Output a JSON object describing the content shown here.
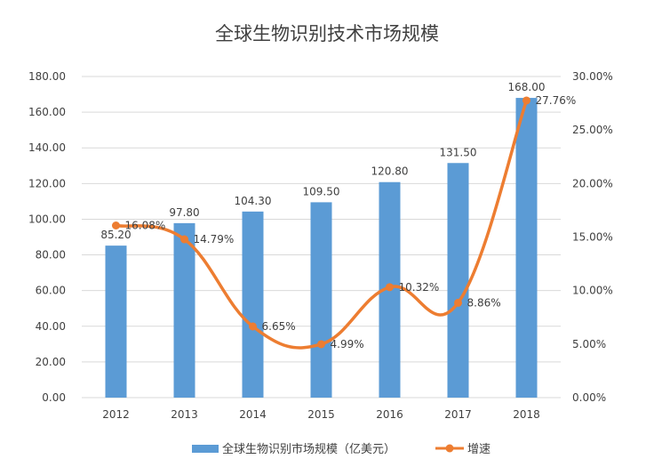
{
  "chart_data": {
    "type": "bar",
    "title": "全球生物识别技术市场规模",
    "categories": [
      "2012",
      "2013",
      "2014",
      "2015",
      "2016",
      "2017",
      "2018"
    ],
    "series": [
      {
        "name": "全球生物识别市场规模（亿美元）",
        "type": "bar",
        "axis": "left",
        "values": [
          85.2,
          97.8,
          104.3,
          109.5,
          120.8,
          131.5,
          168.0
        ],
        "labels": [
          "85.20",
          "97.80",
          "104.30",
          "109.50",
          "120.80",
          "131.50",
          "168.00"
        ],
        "color": "#5B9BD5"
      },
      {
        "name": "增速",
        "type": "line",
        "smooth": true,
        "axis": "right",
        "values": [
          16.08,
          14.79,
          6.65,
          4.99,
          10.32,
          8.86,
          27.76
        ],
        "labels": [
          "16.08%",
          "14.79%",
          "6.65%",
          "4.99%",
          "10.32%",
          "8.86%",
          "27.76%"
        ],
        "color": "#ED7D31"
      }
    ],
    "y_left": {
      "min": 0,
      "max": 180,
      "step": 20,
      "ticks": [
        "0.00",
        "20.00",
        "40.00",
        "60.00",
        "80.00",
        "100.00",
        "120.00",
        "140.00",
        "160.00",
        "180.00"
      ]
    },
    "y_right": {
      "min": 0,
      "max": 30,
      "step": 5,
      "ticks": [
        "0.00%",
        "5.00%",
        "10.00%",
        "15.00%",
        "20.00%",
        "25.00%",
        "30.00%"
      ]
    },
    "grid": true,
    "legend_position": "bottom"
  }
}
